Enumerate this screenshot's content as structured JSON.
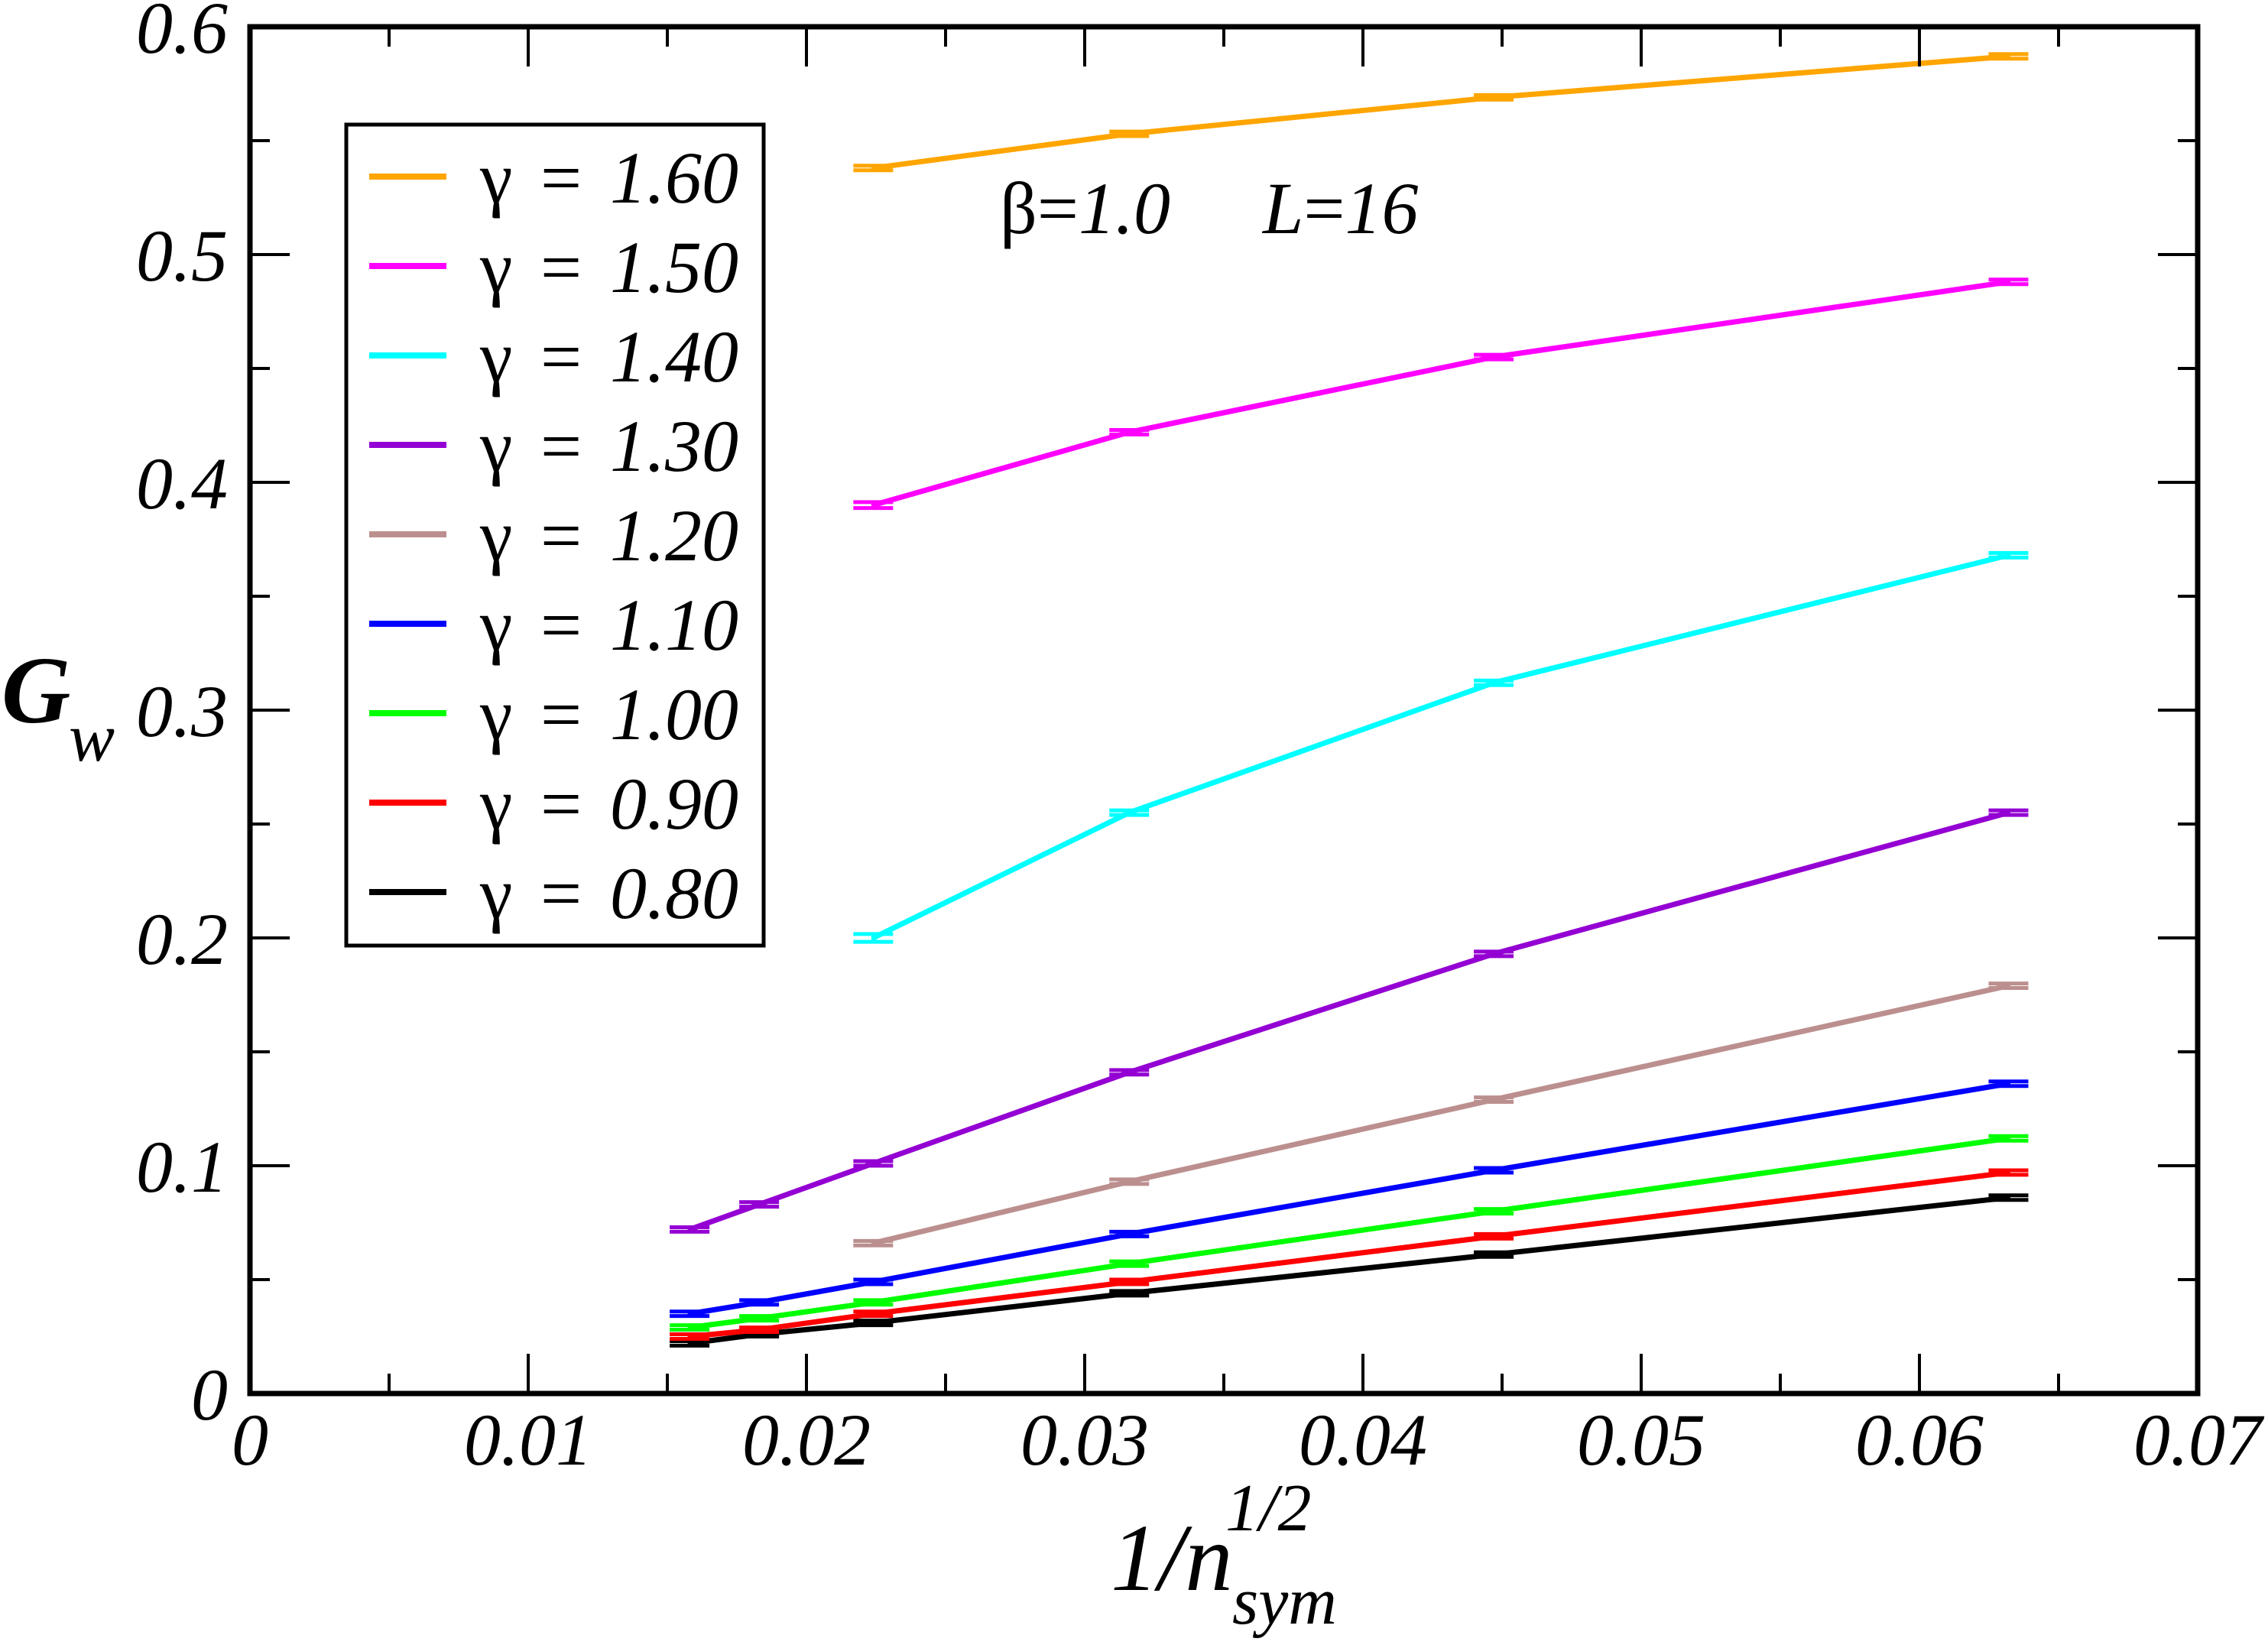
{
  "chart_data": {
    "type": "line",
    "title": "",
    "xlabel": {
      "base": "1/n",
      "sup": "1/2",
      "sub": "sym"
    },
    "ylabel": {
      "base": "G",
      "sub": "w"
    },
    "xlim": [
      0,
      0.07
    ],
    "ylim": [
      0,
      0.6
    ],
    "x_ticks": [
      0,
      0.01,
      0.02,
      0.03,
      0.04,
      0.05,
      0.06,
      0.07
    ],
    "x_tick_labels": [
      "0",
      "0.01",
      "0.02",
      "0.03",
      "0.04",
      "0.05",
      "0.06",
      "0.07"
    ],
    "y_ticks": [
      0,
      0.1,
      0.2,
      0.3,
      0.4,
      0.5,
      0.6
    ],
    "y_tick_labels": [
      "0",
      "0.1",
      "0.2",
      "0.3",
      "0.4",
      "0.5",
      "0.6"
    ],
    "minor_ticks": "midway between major ticks",
    "grid": false,
    "legend_position": "top-left",
    "annotation": {
      "beta": "β=1.0",
      "L": "L=16"
    },
    "series": [
      {
        "name": "γ = 1.60",
        "color": "#ffa500",
        "x": [
          0.0224,
          0.0316,
          0.0447,
          0.0632
        ],
        "y": [
          0.538,
          0.553,
          0.569,
          0.587
        ],
        "yerr": [
          0.001,
          0.001,
          0.001,
          0.001
        ]
      },
      {
        "name": "γ = 1.50",
        "color": "#ff00ff",
        "x": [
          0.0224,
          0.0316,
          0.0447,
          0.0632
        ],
        "y": [
          0.39,
          0.422,
          0.455,
          0.488
        ],
        "yerr": [
          0.0013,
          0.001,
          0.001,
          0.001
        ]
      },
      {
        "name": "γ = 1.40",
        "color": "#00ffff",
        "x": [
          0.0224,
          0.0316,
          0.0447,
          0.0632
        ],
        "y": [
          0.2,
          0.255,
          0.312,
          0.368
        ],
        "yerr": [
          0.0017,
          0.001,
          0.001,
          0.001
        ]
      },
      {
        "name": "γ = 1.30",
        "color": "#9400d3",
        "x": [
          0.0158,
          0.0183,
          0.0224,
          0.0316,
          0.0447,
          0.0632
        ],
        "y": [
          0.072,
          0.083,
          0.101,
          0.141,
          0.193,
          0.255
        ],
        "yerr": [
          0.001,
          0.001,
          0.001,
          0.001,
          0.001,
          0.001
        ]
      },
      {
        "name": "γ = 1.20",
        "color": "#bc8f8f",
        "x": [
          0.0224,
          0.0316,
          0.0447,
          0.0632
        ],
        "y": [
          0.066,
          0.093,
          0.129,
          0.179
        ],
        "yerr": [
          0.001,
          0.001,
          0.001,
          0.001
        ]
      },
      {
        "name": "γ = 1.10",
        "color": "#0000ff",
        "x": [
          0.0158,
          0.0183,
          0.0224,
          0.0316,
          0.0447,
          0.0632
        ],
        "y": [
          0.035,
          0.04,
          0.049,
          0.07,
          0.098,
          0.136
        ],
        "yerr": [
          0.001,
          0.001,
          0.001,
          0.001,
          0.001,
          0.001
        ]
      },
      {
        "name": "γ = 1.00",
        "color": "#00ff00",
        "x": [
          0.0158,
          0.0183,
          0.0224,
          0.0316,
          0.0447,
          0.0632
        ],
        "y": [
          0.029,
          0.033,
          0.04,
          0.057,
          0.08,
          0.112
        ],
        "yerr": [
          0.001,
          0.001,
          0.001,
          0.001,
          0.001,
          0.001
        ]
      },
      {
        "name": "γ = 0.90",
        "color": "#ff0000",
        "x": [
          0.0158,
          0.0183,
          0.0224,
          0.0316,
          0.0447,
          0.0632
        ],
        "y": [
          0.025,
          0.028,
          0.035,
          0.049,
          0.069,
          0.097
        ],
        "yerr": [
          0.001,
          0.001,
          0.001,
          0.001,
          0.001,
          0.001
        ]
      },
      {
        "name": "γ = 0.80",
        "color": "#000000",
        "x": [
          0.0158,
          0.0183,
          0.0224,
          0.0316,
          0.0447,
          0.0632
        ],
        "y": [
          0.022,
          0.026,
          0.031,
          0.044,
          0.061,
          0.086
        ],
        "yerr": [
          0.001,
          0.001,
          0.001,
          0.001,
          0.001,
          0.001
        ]
      }
    ]
  }
}
